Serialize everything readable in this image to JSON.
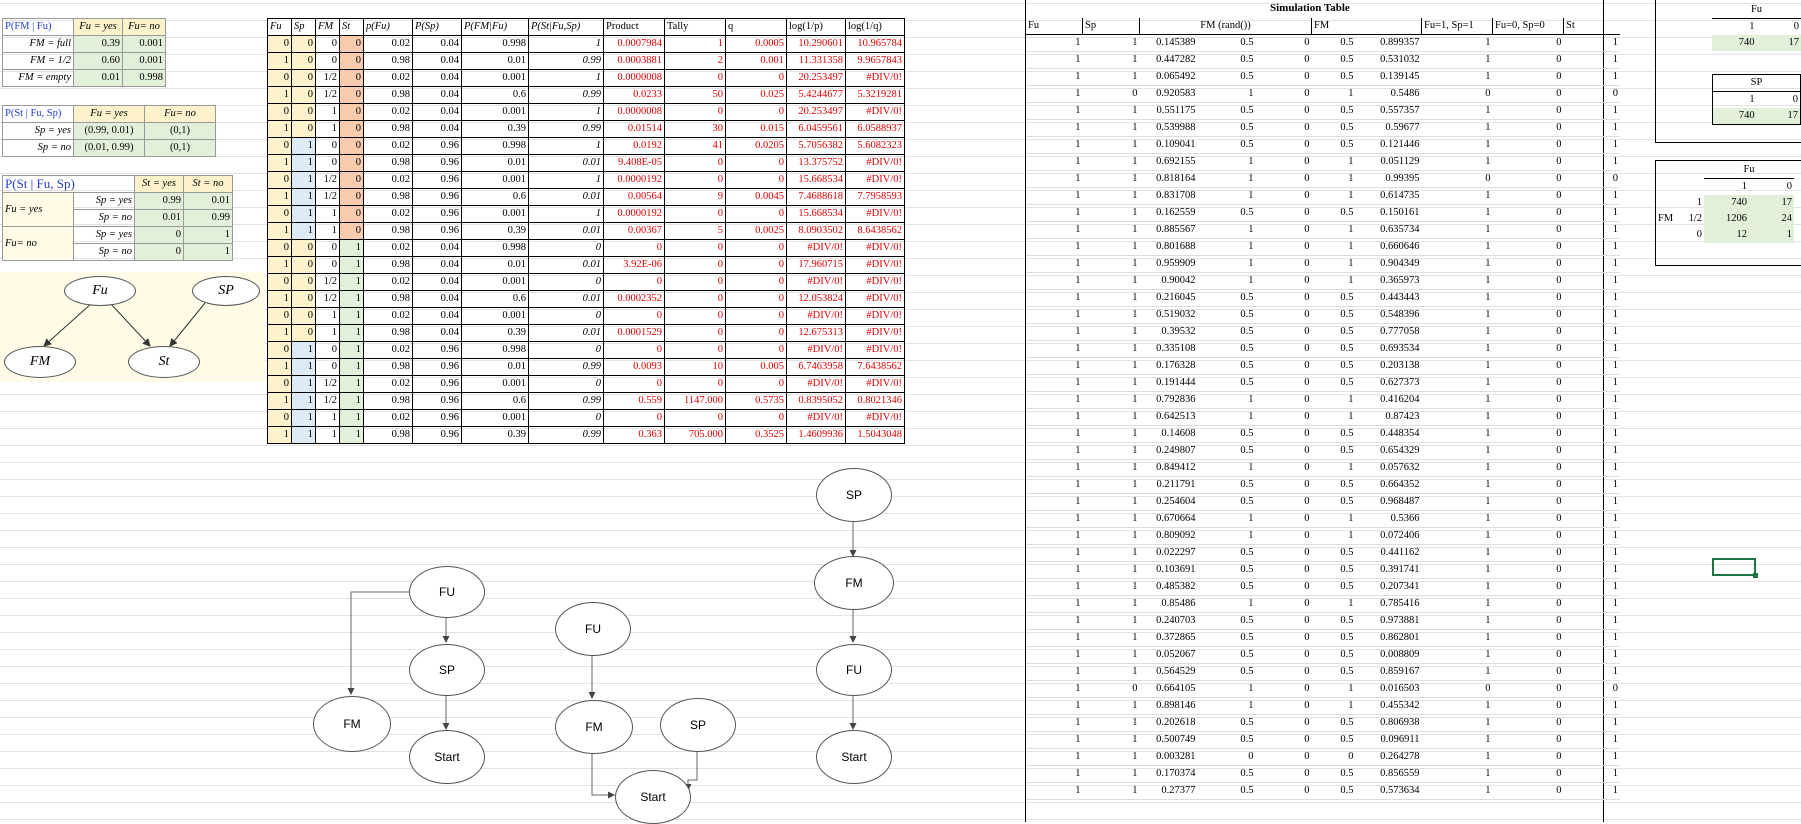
{
  "cpt_fm": {
    "title": "P(FM | Fu)",
    "col_yes": "Fu = yes",
    "col_no": "Fu= no",
    "rows": [
      {
        "label": "FM = full",
        "yes": "0.39",
        "no": "0.001"
      },
      {
        "label": "FM = 1/2",
        "yes": "0.60",
        "no": "0.001"
      },
      {
        "label": "FM = empty",
        "yes": "0.01",
        "no": "0.998"
      }
    ]
  },
  "cpt_st_sp": {
    "title": "P(St | Fu, Sp)",
    "col_yes": "Fu = yes",
    "col_no": "Fu= no",
    "rows": [
      {
        "label": "Sp = yes",
        "yes": "(0.99, 0.01)",
        "no": "(0,1)"
      },
      {
        "label": "Sp = no",
        "yes": "(0.01, 0.99)",
        "no": "(0,1)"
      }
    ]
  },
  "cpt_st": {
    "title": "P(St  |  Fu, Sp)",
    "col_yes": "St = yes",
    "col_no": "St = no",
    "rows": [
      {
        "fu": "Fu = yes",
        "sp": "Sp = yes",
        "yes": "0.99",
        "no": "0.01"
      },
      {
        "fu": "",
        "sp": "Sp = no",
        "yes": "0.01",
        "no": "0.99"
      },
      {
        "fu": "Fu= no",
        "sp": "Sp = yes",
        "yes": "0",
        "no": "1"
      },
      {
        "fu": "",
        "sp": "Sp = no",
        "yes": "0",
        "no": "1"
      }
    ]
  },
  "bayes_net": {
    "fu": "Fu",
    "sp": "SP",
    "fm": "FM",
    "st": "St"
  },
  "joint": {
    "headers": [
      "Fu",
      "Sp",
      "FM",
      "St",
      "p(Fu)",
      "P(Sp)",
      "P(FM|Fu)",
      "P(St|Fu,Sp)",
      "Product",
      "Tally",
      "q",
      "log(1/p)",
      "log(1/q)"
    ],
    "rows": [
      [
        "0",
        "0",
        "0",
        "0",
        "0.02",
        "0.04",
        "0.998",
        "1",
        "0.0007984",
        "1",
        "0.0005",
        "10.290601",
        "10.965784"
      ],
      [
        "1",
        "0",
        "0",
        "0",
        "0.98",
        "0.04",
        "0.01",
        "0.99",
        "0.0003881",
        "2",
        "0.001",
        "11.331358",
        "9.9657843"
      ],
      [
        "0",
        "0",
        "1/2",
        "0",
        "0.02",
        "0.04",
        "0.001",
        "1",
        "0.0000008",
        "0",
        "0",
        "20.253497",
        "#DIV/0!"
      ],
      [
        "1",
        "0",
        "1/2",
        "0",
        "0.98",
        "0.04",
        "0.6",
        "0.99",
        "0.0233",
        "50",
        "0.025",
        "5.4244677",
        "5.3219281"
      ],
      [
        "0",
        "0",
        "1",
        "0",
        "0.02",
        "0.04",
        "0.001",
        "1",
        "0.0000008",
        "0",
        "0",
        "20.253497",
        "#DIV/0!"
      ],
      [
        "1",
        "0",
        "1",
        "0",
        "0.98",
        "0.04",
        "0.39",
        "0.99",
        "0.01514",
        "30",
        "0.015",
        "6.0459561",
        "6.0588937"
      ],
      [
        "0",
        "1",
        "0",
        "0",
        "0.02",
        "0.96",
        "0.998",
        "1",
        "0.0192",
        "41",
        "0.0205",
        "5.7056382",
        "5.6082323"
      ],
      [
        "1",
        "1",
        "0",
        "0",
        "0.98",
        "0.96",
        "0.01",
        "0.01",
        "9.408E-05",
        "0",
        "0",
        "13.375752",
        "#DIV/0!"
      ],
      [
        "0",
        "1",
        "1/2",
        "0",
        "0.02",
        "0.96",
        "0.001",
        "1",
        "0.0000192",
        "0",
        "0",
        "15.668534",
        "#DIV/0!"
      ],
      [
        "1",
        "1",
        "1/2",
        "0",
        "0.98",
        "0.96",
        "0.6",
        "0.01",
        "0.00564",
        "9",
        "0.0045",
        "7.4688618",
        "7.7958593"
      ],
      [
        "0",
        "1",
        "1",
        "0",
        "0.02",
        "0.96",
        "0.001",
        "1",
        "0.0000192",
        "0",
        "0",
        "15.668534",
        "#DIV/0!"
      ],
      [
        "1",
        "1",
        "1",
        "0",
        "0.98",
        "0.96",
        "0.39",
        "0.01",
        "0.00367",
        "5",
        "0.0025",
        "8.0903502",
        "8.6438562"
      ],
      [
        "0",
        "0",
        "0",
        "1",
        "0.02",
        "0.04",
        "0.998",
        "0",
        "0",
        "0",
        "0",
        "#DIV/0!",
        "#DIV/0!"
      ],
      [
        "1",
        "0",
        "0",
        "1",
        "0.98",
        "0.04",
        "0.01",
        "0.01",
        "3.92E-06",
        "0",
        "0",
        "17.960715",
        "#DIV/0!"
      ],
      [
        "0",
        "0",
        "1/2",
        "1",
        "0.02",
        "0.04",
        "0.001",
        "0",
        "0",
        "0",
        "0",
        "#DIV/0!",
        "#DIV/0!"
      ],
      [
        "1",
        "0",
        "1/2",
        "1",
        "0.98",
        "0.04",
        "0.6",
        "0.01",
        "0.0002352",
        "0",
        "0",
        "12.053824",
        "#DIV/0!"
      ],
      [
        "0",
        "0",
        "1",
        "1",
        "0.02",
        "0.04",
        "0.001",
        "0",
        "0",
        "0",
        "0",
        "#DIV/0!",
        "#DIV/0!"
      ],
      [
        "1",
        "0",
        "1",
        "1",
        "0.98",
        "0.04",
        "0.39",
        "0.01",
        "0.0001529",
        "0",
        "0",
        "12.675313",
        "#DIV/0!"
      ],
      [
        "0",
        "1",
        "0",
        "1",
        "0.02",
        "0.96",
        "0.998",
        "0",
        "0",
        "0",
        "0",
        "#DIV/0!",
        "#DIV/0!"
      ],
      [
        "1",
        "1",
        "0",
        "1",
        "0.98",
        "0.96",
        "0.01",
        "0.99",
        "0.0093",
        "10",
        "0.005",
        "6.7463958",
        "7.6438562"
      ],
      [
        "0",
        "1",
        "1/2",
        "1",
        "0.02",
        "0.96",
        "0.001",
        "0",
        "0",
        "0",
        "0",
        "#DIV/0!",
        "#DIV/0!"
      ],
      [
        "1",
        "1",
        "1/2",
        "1",
        "0.98",
        "0.96",
        "0.6",
        "0.99",
        "0.559",
        "1147.000",
        "0.5735",
        "0.8395052",
        "0.8021346"
      ],
      [
        "0",
        "1",
        "1",
        "1",
        "0.02",
        "0.96",
        "0.001",
        "0",
        "0",
        "0",
        "0",
        "#DIV/0!",
        "#DIV/0!"
      ],
      [
        "1",
        "1",
        "1",
        "1",
        "0.98",
        "0.96",
        "0.39",
        "0.99",
        "0.363",
        "705.000",
        "0.3525",
        "1.4609936",
        "1.5043048"
      ]
    ]
  },
  "graphs": {
    "g1": {
      "fu": "FU",
      "sp": "SP",
      "fm": "FM",
      "start": "Start"
    },
    "g2": {
      "fu": "FU",
      "fm": "FM",
      "sp": "SP",
      "start": "Start"
    },
    "g3": {
      "sp": "SP",
      "fm": "FM",
      "fu": "FU",
      "start": "Start"
    }
  },
  "simulation": {
    "title": "Simulation Table",
    "headers": [
      "Fu",
      "Sp",
      "FM (rand())",
      "",
      "",
      "FM",
      "",
      "Fu=1, Sp=1",
      "Fu=0, Sp=0",
      "St"
    ],
    "rows": [
      [
        "1",
        "1",
        "0.145389",
        "0.5",
        "0",
        "0.5",
        "0.899357",
        "1",
        "0",
        "1"
      ],
      [
        "1",
        "1",
        "0.447282",
        "0.5",
        "0",
        "0.5",
        "0.531032",
        "1",
        "0",
        "1"
      ],
      [
        "1",
        "1",
        "0.065492",
        "0.5",
        "0",
        "0.5",
        "0.139145",
        "1",
        "0",
        "1"
      ],
      [
        "1",
        "0",
        "0.920583",
        "1",
        "0",
        "1",
        "0.5486",
        "0",
        "0",
        "0"
      ],
      [
        "1",
        "1",
        "0.551175",
        "0.5",
        "0",
        "0.5",
        "0.557357",
        "1",
        "0",
        "1"
      ],
      [
        "1",
        "1",
        "0.539988",
        "0.5",
        "0",
        "0.5",
        "0.59677",
        "1",
        "0",
        "1"
      ],
      [
        "1",
        "1",
        "0.109041",
        "0.5",
        "0",
        "0.5",
        "0.121446",
        "1",
        "0",
        "1"
      ],
      [
        "1",
        "1",
        "0.692155",
        "1",
        "0",
        "1",
        "0.051129",
        "1",
        "0",
        "1"
      ],
      [
        "1",
        "1",
        "0.818164",
        "1",
        "0",
        "1",
        "0.99395",
        "0",
        "0",
        "0"
      ],
      [
        "1",
        "1",
        "0.831708",
        "1",
        "0",
        "1",
        "0.614735",
        "1",
        "0",
        "1"
      ],
      [
        "1",
        "1",
        "0.162559",
        "0.5",
        "0",
        "0.5",
        "0.150161",
        "1",
        "0",
        "1"
      ],
      [
        "1",
        "1",
        "0.885567",
        "1",
        "0",
        "1",
        "0.635734",
        "1",
        "0",
        "1"
      ],
      [
        "1",
        "1",
        "0.801688",
        "1",
        "0",
        "1",
        "0.660646",
        "1",
        "0",
        "1"
      ],
      [
        "1",
        "1",
        "0.959909",
        "1",
        "0",
        "1",
        "0.904349",
        "1",
        "0",
        "1"
      ],
      [
        "1",
        "1",
        "0.90042",
        "1",
        "0",
        "1",
        "0.365973",
        "1",
        "0",
        "1"
      ],
      [
        "1",
        "1",
        "0.216045",
        "0.5",
        "0",
        "0.5",
        "0.443443",
        "1",
        "0",
        "1"
      ],
      [
        "1",
        "1",
        "0.519032",
        "0.5",
        "0",
        "0.5",
        "0.548396",
        "1",
        "0",
        "1"
      ],
      [
        "1",
        "1",
        "0.39532",
        "0.5",
        "0",
        "0.5",
        "0.777058",
        "1",
        "0",
        "1"
      ],
      [
        "1",
        "1",
        "0.335108",
        "0.5",
        "0",
        "0.5",
        "0.693534",
        "1",
        "0",
        "1"
      ],
      [
        "1",
        "1",
        "0.176328",
        "0.5",
        "0",
        "0.5",
        "0.203138",
        "1",
        "0",
        "1"
      ],
      [
        "1",
        "1",
        "0.191444",
        "0.5",
        "0",
        "0.5",
        "0.627373",
        "1",
        "0",
        "1"
      ],
      [
        "1",
        "1",
        "0.792836",
        "1",
        "0",
        "1",
        "0.416204",
        "1",
        "0",
        "1"
      ],
      [
        "1",
        "1",
        "0.642513",
        "1",
        "0",
        "1",
        "0.87423",
        "1",
        "0",
        "1"
      ],
      [
        "1",
        "1",
        "0.14608",
        "0.5",
        "0",
        "0.5",
        "0.448354",
        "1",
        "0",
        "1"
      ],
      [
        "1",
        "1",
        "0.249807",
        "0.5",
        "0",
        "0.5",
        "0.654329",
        "1",
        "0",
        "1"
      ],
      [
        "1",
        "1",
        "0.849412",
        "1",
        "0",
        "1",
        "0.057632",
        "1",
        "0",
        "1"
      ],
      [
        "1",
        "1",
        "0.211791",
        "0.5",
        "0",
        "0.5",
        "0.664352",
        "1",
        "0",
        "1"
      ],
      [
        "1",
        "1",
        "0.254604",
        "0.5",
        "0",
        "0.5",
        "0.968487",
        "1",
        "0",
        "1"
      ],
      [
        "1",
        "1",
        "0.670664",
        "1",
        "0",
        "1",
        "0.5366",
        "1",
        "0",
        "1"
      ],
      [
        "1",
        "1",
        "0.809092",
        "1",
        "0",
        "1",
        "0.072406",
        "1",
        "0",
        "1"
      ],
      [
        "1",
        "1",
        "0.022297",
        "0.5",
        "0",
        "0.5",
        "0.441162",
        "1",
        "0",
        "1"
      ],
      [
        "1",
        "1",
        "0.103691",
        "0.5",
        "0",
        "0.5",
        "0.391741",
        "1",
        "0",
        "1"
      ],
      [
        "1",
        "1",
        "0.485382",
        "0.5",
        "0",
        "0.5",
        "0.207341",
        "1",
        "0",
        "1"
      ],
      [
        "1",
        "1",
        "0.85486",
        "1",
        "0",
        "1",
        "0.785416",
        "1",
        "0",
        "1"
      ],
      [
        "1",
        "1",
        "0.240703",
        "0.5",
        "0",
        "0.5",
        "0.973881",
        "1",
        "0",
        "1"
      ],
      [
        "1",
        "1",
        "0.372865",
        "0.5",
        "0",
        "0.5",
        "0.862801",
        "1",
        "0",
        "1"
      ],
      [
        "1",
        "1",
        "0.052067",
        "0.5",
        "0",
        "0.5",
        "0.008809",
        "1",
        "0",
        "1"
      ],
      [
        "1",
        "1",
        "0.564529",
        "0.5",
        "0",
        "0.5",
        "0.859167",
        "1",
        "0",
        "1"
      ],
      [
        "1",
        "0",
        "0.664105",
        "1",
        "0",
        "1",
        "0.016503",
        "0",
        "0",
        "0"
      ],
      [
        "1",
        "1",
        "0.898146",
        "1",
        "0",
        "1",
        "0.455342",
        "1",
        "0",
        "1"
      ],
      [
        "1",
        "1",
        "0.202618",
        "0.5",
        "0",
        "0.5",
        "0.806938",
        "1",
        "0",
        "1"
      ],
      [
        "1",
        "1",
        "0.500749",
        "0.5",
        "0",
        "0.5",
        "0.096911",
        "1",
        "0",
        "1"
      ],
      [
        "1",
        "1",
        "0.003281",
        "0",
        "0",
        "0",
        "0.264278",
        "1",
        "0",
        "1"
      ],
      [
        "1",
        "1",
        "0.170374",
        "0.5",
        "0",
        "0.5",
        "0.856559",
        "1",
        "0",
        "1"
      ],
      [
        "1",
        "1",
        "0.27377",
        "0.5",
        "0",
        "0.5",
        "0.573634",
        "1",
        "0",
        "1"
      ]
    ]
  },
  "tally_fu": {
    "title": "Fu",
    "cols": [
      "1",
      "0"
    ],
    "values": [
      "740",
      "17"
    ]
  },
  "tally_sp": {
    "title": "SP",
    "cols": [
      "1",
      "0"
    ],
    "values": [
      "740",
      "17"
    ]
  },
  "tally_fm_fu": {
    "title": "Fu",
    "row_label": "FM",
    "cols": [
      "1",
      "0"
    ],
    "rows": [
      {
        "label": "1",
        "v1": "740",
        "v0": "17"
      },
      {
        "label": "1/2",
        "v1": "1206",
        "v0": "24"
      },
      {
        "label": "0",
        "v1": "12",
        "v0": "1"
      }
    ]
  }
}
